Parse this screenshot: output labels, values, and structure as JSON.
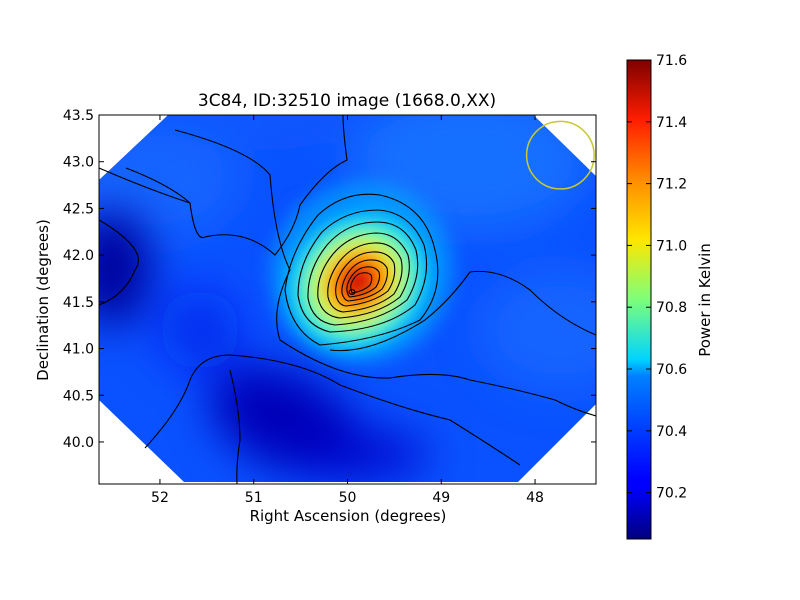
{
  "chart_data": {
    "type": "heatmap",
    "title": "3C84, ID:32510 image (1668.0,XX)",
    "xlabel": "Right Ascension (degrees)",
    "ylabel": "Declination (degrees)",
    "xlim": [
      52.65,
      47.35
    ],
    "ylim": [
      39.55,
      43.5
    ],
    "x_ticks": [
      52,
      51,
      50,
      49,
      48
    ],
    "x_tick_labels": [
      "52",
      "51",
      "50",
      "49",
      "48"
    ],
    "y_ticks": [
      40.0,
      40.5,
      41.0,
      41.5,
      42.0,
      42.5,
      43.0,
      43.5
    ],
    "y_tick_labels": [
      "40.0",
      "40.5",
      "41.0",
      "41.5",
      "42.0",
      "42.5",
      "43.0",
      "43.5"
    ],
    "colorbar": {
      "label": "Power in Kelvin",
      "range": [
        70.05,
        71.6
      ],
      "ticks": [
        70.2,
        70.4,
        70.6,
        70.8,
        71.0,
        71.2,
        71.4,
        71.6
      ],
      "tick_labels": [
        "70.2",
        "70.4",
        "70.6",
        "70.8",
        "71.0",
        "71.2",
        "71.4",
        "71.6"
      ],
      "colormap": "jet"
    },
    "peak": {
      "ra": 49.95,
      "dec": 41.6,
      "value": 71.6
    },
    "low_regions": [
      {
        "ra": 52.55,
        "dec": 41.85,
        "value": 70.05
      },
      {
        "ra": 50.85,
        "dec": 40.1,
        "value": 70.1
      }
    ],
    "beam": {
      "ra": 47.73,
      "dec": 43.07,
      "radius_deg": 0.36,
      "color": "#c8c832"
    },
    "contour_color": "#000000"
  }
}
